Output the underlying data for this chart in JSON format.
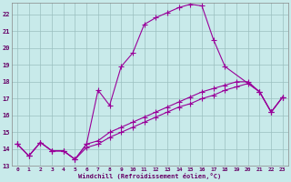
{
  "xlabel": "Windchill (Refroidissement éolien,°C)",
  "xlim": [
    -0.5,
    23.5
  ],
  "ylim": [
    13,
    22.7
  ],
  "yticks": [
    13,
    14,
    15,
    16,
    17,
    18,
    19,
    20,
    21,
    22
  ],
  "xticks": [
    0,
    1,
    2,
    3,
    4,
    5,
    6,
    7,
    8,
    9,
    10,
    11,
    12,
    13,
    14,
    15,
    16,
    17,
    18,
    19,
    20,
    21,
    22,
    23
  ],
  "background_color": "#c8eaea",
  "line_color": "#990099",
  "grid_color": "#9bbfbf",
  "line1_x": [
    0,
    1,
    2,
    3,
    4,
    5,
    6,
    7,
    8,
    9,
    10,
    11,
    12,
    13,
    14,
    15,
    16,
    17,
    18,
    21,
    22,
    23
  ],
  "line1_y": [
    14.3,
    13.6,
    14.4,
    13.9,
    13.9,
    13.4,
    14.3,
    17.5,
    16.6,
    18.9,
    19.7,
    21.4,
    21.8,
    22.1,
    22.4,
    22.6,
    22.5,
    20.5,
    18.9,
    17.4,
    16.2,
    17.1
  ],
  "line2_x": [
    0,
    1,
    2,
    3,
    4,
    5,
    6,
    7,
    8,
    9,
    10,
    11,
    12,
    13,
    14,
    15,
    16,
    17,
    18,
    19,
    20,
    21,
    22,
    23
  ],
  "line2_y": [
    14.3,
    13.6,
    14.4,
    13.9,
    13.9,
    13.4,
    14.3,
    14.5,
    15.0,
    15.3,
    15.6,
    15.9,
    16.2,
    16.5,
    16.8,
    17.1,
    17.4,
    17.6,
    17.8,
    18.0,
    18.0,
    17.4,
    16.2,
    17.1
  ],
  "line3_x": [
    0,
    1,
    2,
    3,
    4,
    5,
    6,
    7,
    8,
    9,
    10,
    11,
    12,
    13,
    14,
    15,
    16,
    17,
    18,
    19,
    20,
    21,
    22,
    23
  ],
  "line3_y": [
    14.3,
    13.6,
    14.4,
    13.9,
    13.9,
    13.4,
    14.1,
    14.3,
    14.7,
    15.0,
    15.3,
    15.6,
    15.9,
    16.2,
    16.5,
    16.7,
    17.0,
    17.2,
    17.5,
    17.7,
    17.9,
    17.4,
    16.2,
    17.1
  ],
  "marker": "+",
  "markersize": 4,
  "linewidth": 0.8
}
